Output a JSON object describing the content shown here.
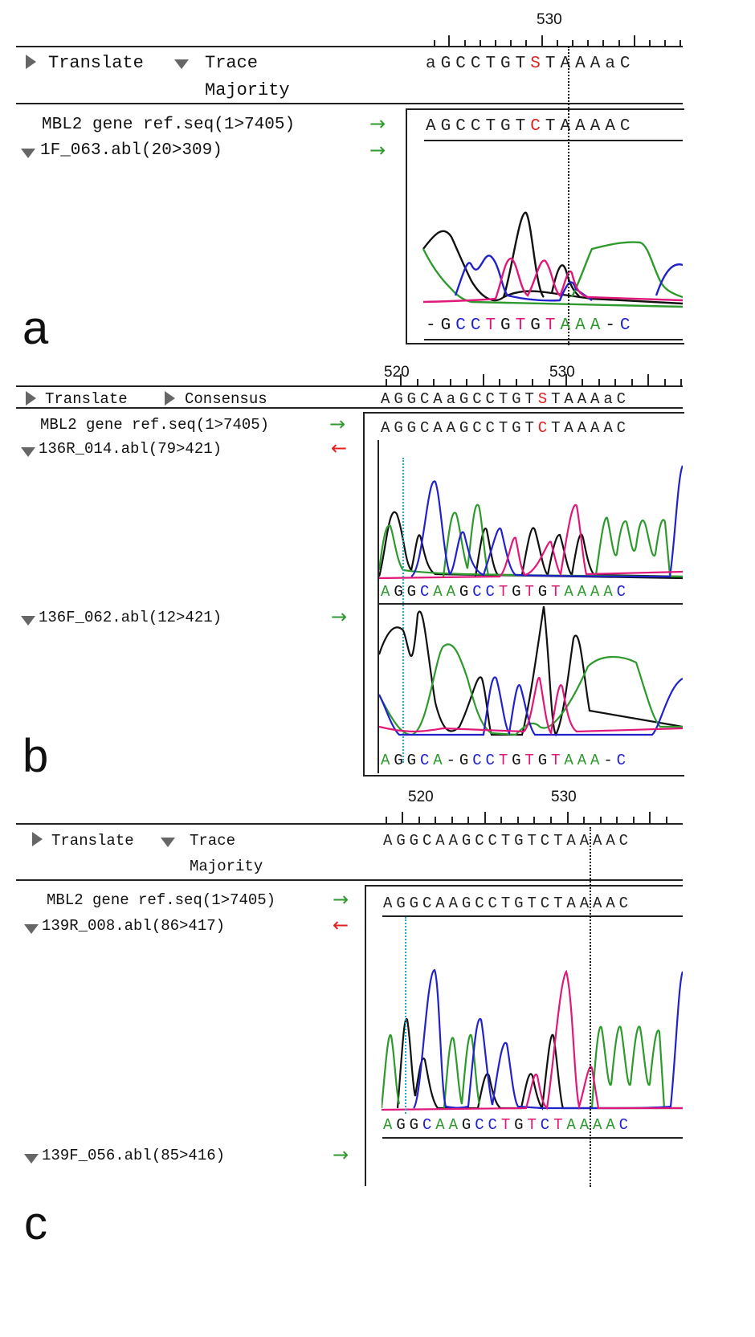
{
  "colors": {
    "A": "#2e9a2e",
    "C": "#2222cc",
    "G": "#111111",
    "T": "#e0187a",
    "accent_red": "#e02020",
    "arrow_green": "#2e9a2e",
    "arrow_red": "#e02020",
    "cyan": "#29a9c9"
  },
  "panels": [
    {
      "id": "a",
      "letter": "a",
      "ruler": {
        "labels": [
          "530"
        ]
      },
      "menu": {
        "translate": "Translate",
        "trace": "Trace",
        "majority": "Majority"
      },
      "header_seq": "aGCCTGTSTAAAaC",
      "ref_label": "MBL2 gene ref.seq(1>7405)",
      "ref_seq": "AGCCTGTCTAAAAC",
      "reads": [
        {
          "label": "1F_063.abl(20>309)",
          "direction": "forward",
          "seq": "-GCCTGTGTAAA-C"
        }
      ]
    },
    {
      "id": "b",
      "letter": "b",
      "ruler": {
        "labels": [
          "520",
          "530"
        ]
      },
      "menu": {
        "translate": "Translate",
        "consensus": "Consensus"
      },
      "header_seq": "AGGCAaGCCTGTSTAAAaC",
      "ref_label": "MBL2 gene ref.seq(1>7405)",
      "ref_seq": "AGGCAAGCCTGTCTAAAAC",
      "reads": [
        {
          "label": "136R_014.abl(79>421)",
          "direction": "reverse",
          "seq": "AGGCAAGCCTGTGTAAAAC"
        },
        {
          "label": "136F_062.abl(12>421)",
          "direction": "forward",
          "seq": "AGGCA-GCCTGTGTAAA-C"
        }
      ]
    },
    {
      "id": "c",
      "letter": "c",
      "ruler": {
        "labels": [
          "520",
          "530"
        ]
      },
      "menu": {
        "translate": "Translate",
        "trace": "Trace",
        "majority": "Majority"
      },
      "header_seq": "AGGCAAGCCTGTCTAAAAC",
      "ref_label": "MBL2 gene ref.seq(1>7405)",
      "ref_seq": "AGGCAAGCCTGTCTAAAAC",
      "reads": [
        {
          "label": "139R_008.abl(86>417)",
          "direction": "reverse",
          "seq": "AGGCAAGCCTGTCTAAAAC"
        },
        {
          "label": "139F_056.abl(85>416)",
          "direction": "forward",
          "seq": ""
        }
      ]
    }
  ],
  "arrows": {
    "forward": "→",
    "reverse": "←"
  }
}
